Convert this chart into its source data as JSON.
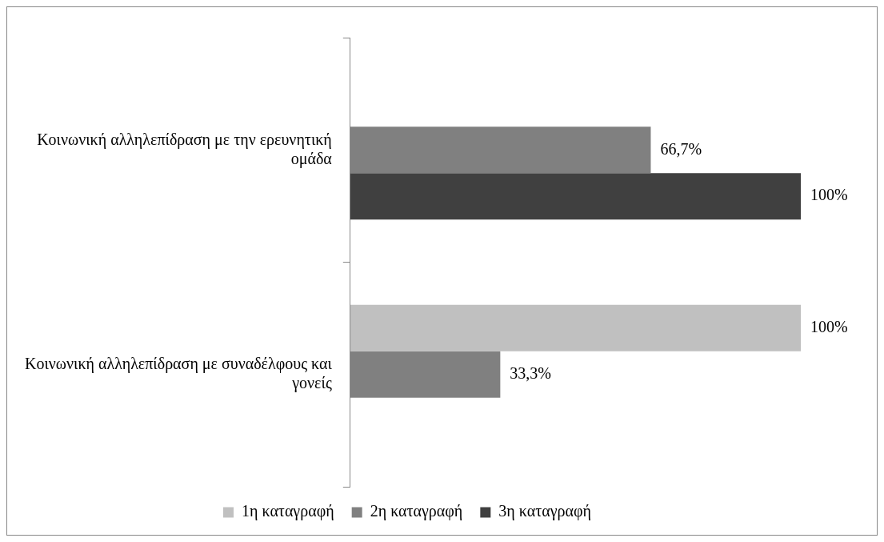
{
  "chart_data": {
    "type": "bar",
    "orientation": "horizontal",
    "categories": [
      "Κοινωνική αλληλεπίδραση με την ερευνητική ομάδα",
      "Κοινωνική αλληλεπίδραση με συναδέλφους και γονείς"
    ],
    "series": [
      {
        "name": "1η καταγραφή",
        "color": "#c0c0c0",
        "values": [
          null,
          100
        ],
        "value_labels": [
          null,
          "100%"
        ]
      },
      {
        "name": "2η καταγραφή",
        "color": "#808080",
        "values": [
          66.7,
          33.3
        ],
        "value_labels": [
          "66,7%",
          "33,3%"
        ]
      },
      {
        "name": "3η καταγραφή",
        "color": "#404040",
        "values": [
          100,
          null
        ],
        "value_labels": [
          "100%",
          null
        ]
      }
    ],
    "xlim": [
      0,
      100
    ],
    "tick_labels": "y",
    "legend": "bottom"
  }
}
